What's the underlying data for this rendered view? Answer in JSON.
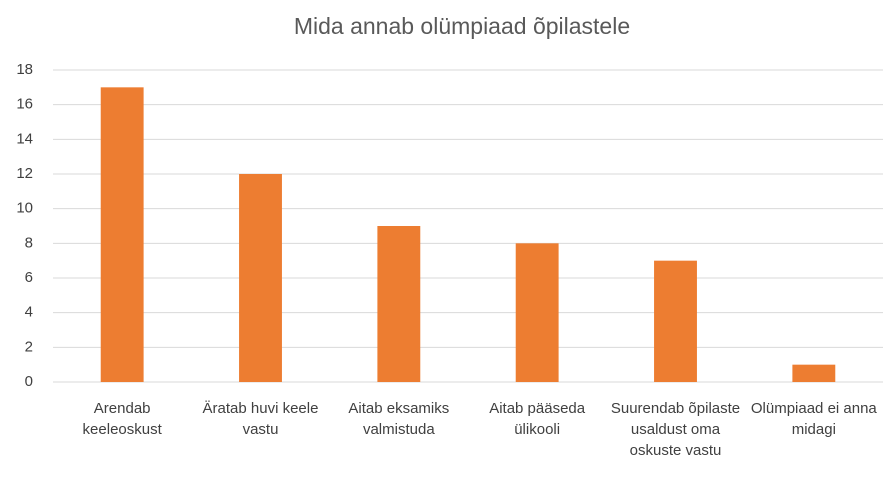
{
  "chart_data": {
    "type": "bar",
    "title": "Mida annab olümpiaad õpilastele",
    "categories": [
      "Arendab keeleoskust",
      "Äratab huvi keele vastu",
      "Aitab eksamiks valmistuda",
      "Aitab pääseda ülikooli",
      "Suurendab õpilaste usaldust oma oskuste vastu",
      "Olümpiaad ei anna midagi"
    ],
    "values": [
      17,
      12,
      9,
      8,
      7,
      1
    ],
    "color": "#ed7d31",
    "ylim": [
      0,
      18
    ],
    "yticks": [
      0,
      2,
      4,
      6,
      8,
      10,
      12,
      14,
      16,
      18
    ],
    "grid": true
  }
}
